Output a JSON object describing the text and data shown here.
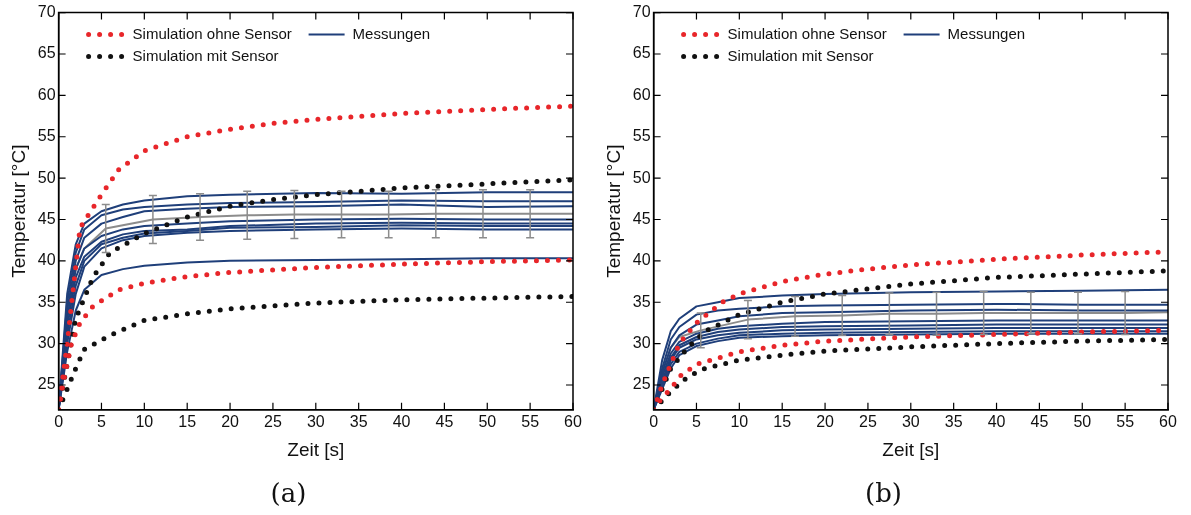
{
  "chart_data": [
    {
      "type": "line",
      "title": "(a)",
      "xlabel": "Zeit [s]",
      "ylabel": "Temperatur [°C]",
      "xlim": [
        0,
        60
      ],
      "ylim": [
        22,
        70
      ],
      "xticks": [
        0,
        5,
        10,
        15,
        20,
        25,
        30,
        35,
        40,
        45,
        50,
        55,
        60
      ],
      "yticks": [
        25,
        30,
        35,
        40,
        45,
        50,
        55,
        60,
        65,
        70
      ],
      "legend": "top left",
      "grid": false,
      "series": [
        {
          "name": "Simulation ohne Sensor",
          "color": "#e8262a",
          "line_style": "dotted",
          "x": [
            0,
            1,
            2.5,
            5,
            7,
            10,
            15,
            20,
            25,
            30,
            40,
            50,
            60
          ],
          "values": [
            22,
            30,
            44,
            48,
            51,
            53.3,
            55,
            55.9,
            56.6,
            57.1,
            57.8,
            58.3,
            58.7
          ]
        },
        {
          "color": "#e8262a",
          "line_style": "dotted",
          "x": [
            0,
            0.5,
            1,
            1.5,
            2.5,
            4,
            7,
            10,
            15,
            20,
            30,
            40,
            50,
            60
          ],
          "values": [
            22,
            25,
            27.5,
            30,
            32.5,
            34.5,
            36.5,
            37.3,
            38.1,
            38.6,
            39.2,
            39.6,
            39.9,
            40.1
          ]
        },
        {
          "name": "Simulation mit Sensor",
          "color": "#111111",
          "line_style": "dotted",
          "x": [
            0,
            2,
            4,
            6,
            10,
            15,
            20,
            25,
            30,
            40,
            50,
            60
          ],
          "values": [
            22,
            33,
            38,
            41,
            43.3,
            45.3,
            46.6,
            47.4,
            48,
            48.8,
            49.3,
            49.8
          ]
        },
        {
          "color": "#111111",
          "line_style": "dotted",
          "x": [
            0,
            1,
            2,
            3,
            6,
            10,
            15,
            20,
            30,
            40,
            50,
            60
          ],
          "values": [
            22,
            24.5,
            27,
            29.3,
            31,
            32.8,
            33.6,
            34.2,
            34.9,
            35.3,
            35.5,
            35.7
          ]
        },
        {
          "name": "Messungen",
          "color": "#1f3f7a",
          "line_style": "solid",
          "x": [
            0,
            1,
            2,
            3,
            5,
            7.5,
            10,
            15,
            20,
            30,
            40,
            50,
            60
          ],
          "values": [
            22,
            36,
            42,
            44.5,
            46,
            46.8,
            47.3,
            47.8,
            48,
            48.2,
            48.1,
            48.3,
            48.3
          ]
        },
        {
          "color": "#1f3f7a",
          "line_style": "solid",
          "x": [
            0,
            1,
            2,
            3,
            5,
            7.5,
            10,
            15,
            20,
            30,
            40,
            50,
            60
          ],
          "values": [
            22,
            35,
            41,
            43.8,
            45.5,
            46.2,
            46.5,
            46.8,
            47,
            47.1,
            47.3,
            47.2,
            47.2
          ]
        },
        {
          "color": "#1f3f7a",
          "line_style": "solid",
          "x": [
            0,
            1,
            2,
            3,
            5,
            7.5,
            10,
            15,
            20,
            30,
            40,
            50,
            60
          ],
          "values": [
            22,
            34,
            40,
            42.8,
            44.5,
            45.3,
            46,
            46.3,
            46.5,
            46.6,
            46.8,
            46.5,
            46.6
          ]
        },
        {
          "color": "#1f3f7a",
          "line_style": "solid",
          "x": [
            0,
            1,
            2,
            3,
            5,
            7.5,
            10,
            15,
            20,
            30,
            40,
            50,
            60
          ],
          "values": [
            22,
            33,
            39,
            41.5,
            43,
            43.8,
            44.2,
            44.5,
            44.8,
            45,
            45.1,
            45,
            45
          ]
        },
        {
          "color": "#1f3f7a",
          "line_style": "solid",
          "x": [
            0,
            1,
            2,
            3,
            5,
            7.5,
            10,
            15,
            20,
            30,
            40,
            50,
            60
          ],
          "values": [
            22,
            32,
            38,
            40.5,
            42.3,
            43.2,
            43.6,
            43.8,
            44.2,
            44.5,
            44.6,
            44.5,
            44.5
          ]
        },
        {
          "color": "#1f3f7a",
          "line_style": "solid",
          "x": [
            0,
            1,
            2,
            3,
            5,
            7.5,
            10,
            15,
            20,
            30,
            40,
            50,
            60
          ],
          "values": [
            22,
            31,
            37,
            40,
            42,
            42.8,
            43.3,
            43.6,
            44,
            44.1,
            44.3,
            44.2,
            44.2
          ]
        },
        {
          "color": "#1f3f7a",
          "line_style": "solid",
          "x": [
            0,
            1,
            2,
            3,
            5,
            7.5,
            10,
            15,
            20,
            30,
            40,
            50,
            60
          ],
          "values": [
            22,
            30,
            36,
            39.3,
            41.5,
            42.5,
            43,
            43.4,
            43.6,
            43.8,
            43.9,
            43.8,
            43.8
          ]
        },
        {
          "color": "#1f3f7a",
          "line_style": "solid",
          "x": [
            0,
            1,
            2,
            3,
            5,
            7.5,
            10,
            15,
            20,
            30,
            40,
            50,
            60
          ],
          "values": [
            22,
            29,
            34,
            36.5,
            38.3,
            39,
            39.4,
            39.8,
            40,
            40.1,
            40.2,
            40.3,
            40.3
          ]
        },
        {
          "color": "#8c8c8c",
          "line_style": "solid",
          "x": [
            0,
            1,
            2,
            3,
            5.5,
            11,
            16.5,
            22,
            27.5,
            33,
            38.5,
            44,
            49.5,
            55,
            60
          ],
          "values": [
            22,
            33,
            39,
            41.5,
            43.9,
            45,
            45.3,
            45.5,
            45.6,
            45.6,
            45.6,
            45.7,
            45.7,
            45.7,
            45.7
          ],
          "errors": [
            null,
            null,
            null,
            null,
            2.9,
            2.9,
            2.8,
            2.9,
            2.9,
            2.8,
            2.8,
            2.9,
            2.9,
            2.9,
            null
          ]
        }
      ]
    },
    {
      "type": "line",
      "title": "(b)",
      "xlabel": "Zeit [s]",
      "ylabel": "Temperatur [°C]",
      "xlim": [
        0,
        60
      ],
      "ylim": [
        22,
        70
      ],
      "xticks": [
        0,
        5,
        10,
        15,
        20,
        25,
        30,
        35,
        40,
        45,
        50,
        55,
        60
      ],
      "yticks": [
        25,
        30,
        35,
        40,
        45,
        50,
        55,
        60,
        65,
        70
      ],
      "legend": "top left",
      "grid": false,
      "series": [
        {
          "name": "Simulation ohne Sensor",
          "color": "#e8262a",
          "line_style": "dotted",
          "x": [
            0,
            1,
            3,
            5,
            8,
            10,
            15,
            20,
            25,
            30,
            40,
            50,
            60
          ],
          "values": [
            22,
            25,
            30,
            32.5,
            35,
            36,
            37.5,
            38.4,
            39,
            39.5,
            40.2,
            40.7,
            41.1
          ]
        },
        {
          "color": "#e8262a",
          "line_style": "dotted",
          "x": [
            0,
            1,
            2,
            3,
            5,
            10,
            15,
            20,
            30,
            40,
            50,
            60
          ],
          "values": [
            22,
            23.5,
            24.5,
            26,
            27.5,
            29,
            29.8,
            30.3,
            30.8,
            31.1,
            31.4,
            31.6
          ]
        },
        {
          "name": "Simulation mit Sensor",
          "color": "#111111",
          "line_style": "dotted",
          "x": [
            0,
            2,
            4,
            6,
            10,
            15,
            20,
            25,
            30,
            40,
            50,
            60
          ],
          "values": [
            22,
            27,
            29.5,
            31.5,
            33.5,
            35,
            36,
            36.6,
            37.2,
            38,
            38.4,
            38.8
          ]
        },
        {
          "color": "#111111",
          "line_style": "dotted",
          "x": [
            0,
            2,
            4,
            6,
            10,
            15,
            20,
            30,
            40,
            50,
            60
          ],
          "values": [
            22,
            24.2,
            26,
            27,
            28,
            28.6,
            29.1,
            29.6,
            30,
            30.3,
            30.5
          ]
        },
        {
          "name": "Messungen",
          "color": "#1f3f7a",
          "line_style": "solid",
          "x": [
            0,
            1,
            2,
            3,
            5,
            7.5,
            10,
            15,
            20,
            30,
            40,
            50,
            60
          ],
          "values": [
            22,
            28,
            31.5,
            33,
            34.5,
            35,
            35.5,
            35.8,
            36,
            36.2,
            36.3,
            36.4,
            36.5
          ]
        },
        {
          "color": "#1f3f7a",
          "line_style": "solid",
          "x": [
            0,
            1,
            2,
            3,
            5,
            7.5,
            10,
            15,
            20,
            30,
            40,
            50,
            60
          ],
          "values": [
            22,
            27,
            30.5,
            32,
            33.5,
            34,
            34.2,
            34.5,
            34.6,
            34.7,
            34.8,
            34.7,
            34.7
          ]
        },
        {
          "color": "#1f3f7a",
          "line_style": "solid",
          "x": [
            0,
            1,
            2,
            3,
            5,
            7.5,
            10,
            15,
            20,
            30,
            40,
            50,
            60
          ],
          "values": [
            22,
            26.5,
            29.5,
            31,
            32.3,
            32.8,
            33.3,
            33.7,
            33.8,
            34,
            34.1,
            34,
            34
          ]
        },
        {
          "color": "#1f3f7a",
          "line_style": "solid",
          "x": [
            0,
            1,
            2,
            3,
            5,
            7.5,
            10,
            15,
            20,
            30,
            40,
            50,
            60
          ],
          "values": [
            22,
            26,
            28.8,
            30.2,
            31.2,
            31.8,
            32.1,
            32.4,
            32.6,
            32.7,
            32.8,
            32.8,
            32.8
          ]
        },
        {
          "color": "#1f3f7a",
          "line_style": "solid",
          "x": [
            0,
            1,
            2,
            3,
            5,
            7.5,
            10,
            15,
            20,
            30,
            40,
            50,
            60
          ],
          "values": [
            22,
            25.5,
            28.3,
            29.8,
            30.8,
            31.4,
            31.7,
            32,
            32.1,
            32.2,
            32.3,
            32.3,
            32.3
          ]
        },
        {
          "color": "#1f3f7a",
          "line_style": "solid",
          "x": [
            0,
            1,
            2,
            3,
            5,
            7.5,
            10,
            15,
            20,
            30,
            40,
            50,
            60
          ],
          "values": [
            22,
            25,
            28,
            29.5,
            30.5,
            31,
            31.3,
            31.6,
            31.7,
            31.8,
            31.9,
            31.9,
            31.9
          ]
        },
        {
          "color": "#1f3f7a",
          "line_style": "solid",
          "x": [
            0,
            1,
            2,
            3,
            5,
            7.5,
            10,
            15,
            20,
            30,
            40,
            50,
            60
          ],
          "values": [
            22,
            24.8,
            27.5,
            29,
            30,
            30.6,
            31,
            31.2,
            31.3,
            31.4,
            31.5,
            31.5,
            31.5
          ]
        },
        {
          "color": "#1f3f7a",
          "line_style": "solid",
          "x": [
            0,
            1,
            2,
            3,
            5,
            7.5,
            10,
            15,
            20,
            30,
            40,
            50,
            60
          ],
          "values": [
            22,
            24.5,
            27,
            28.6,
            29.7,
            30.3,
            30.7,
            30.9,
            31,
            31.1,
            31.2,
            31.2,
            31.2
          ]
        },
        {
          "color": "#8c8c8c",
          "line_style": "solid",
          "x": [
            0,
            1,
            2,
            3,
            5.5,
            11,
            16.5,
            22,
            27.5,
            33,
            38.5,
            44,
            49.5,
            55,
            60
          ],
          "values": [
            22,
            26.5,
            29.5,
            30.8,
            31.6,
            32.9,
            33.3,
            33.4,
            33.6,
            33.6,
            33.7,
            33.7,
            33.7,
            33.7,
            33.8
          ],
          "errors": [
            null,
            null,
            null,
            null,
            2.1,
            2.3,
            2.4,
            2.4,
            2.5,
            2.6,
            2.6,
            2.5,
            2.5,
            2.6,
            null
          ]
        }
      ]
    }
  ]
}
